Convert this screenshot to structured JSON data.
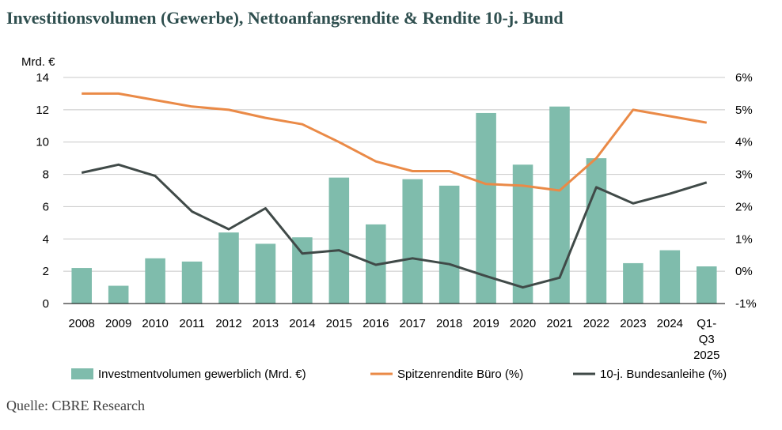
{
  "title": "Investitionsvolumen (Gewerbe), Nettoanfangsrendite & Rendite 10-j. Bund",
  "source": "Quelle: CBRE Research",
  "colors": {
    "bars": "#7fbcac",
    "spitzenrendite": "#ea8a47",
    "bund": "#404a48",
    "grid": "#c8c8c8"
  },
  "chart_data": {
    "type": "bar",
    "title": "Investitionsvolumen (Gewerbe), Nettoanfangsrendite & Rendite 10-j. Bund",
    "y_unit_label": "Mrd. €",
    "categories": [
      "2008",
      "2009",
      "2010",
      "2011",
      "2012",
      "2013",
      "2014",
      "2015",
      "2016",
      "2017",
      "2018",
      "2019",
      "2020",
      "2021",
      "2022",
      "2023",
      "2024",
      "Q1-Q3 2025"
    ],
    "category_lines": [
      [
        "2008"
      ],
      [
        "2009"
      ],
      [
        "2010"
      ],
      [
        "2011"
      ],
      [
        "2012"
      ],
      [
        "2013"
      ],
      [
        "2014"
      ],
      [
        "2015"
      ],
      [
        "2016"
      ],
      [
        "2017"
      ],
      [
        "2018"
      ],
      [
        "2019"
      ],
      [
        "2020"
      ],
      [
        "2021"
      ],
      [
        "2022"
      ],
      [
        "2023"
      ],
      [
        "2024"
      ],
      [
        "Q1-",
        "Q3",
        "2025"
      ]
    ],
    "ylim_left": [
      0,
      14
    ],
    "yticks_left": [
      0,
      2,
      4,
      6,
      8,
      10,
      12,
      14
    ],
    "ylim_right": [
      -1,
      6
    ],
    "yticks_right": [
      -1,
      0,
      1,
      2,
      3,
      4,
      5,
      6
    ],
    "yticks_right_labels": [
      "-1%",
      "0%",
      "1%",
      "2%",
      "3%",
      "4%",
      "5%",
      "6%"
    ],
    "grid": true,
    "legend_position": "bottom",
    "series": [
      {
        "name": "Investmentvolumen gewerblich (Mrd. €)",
        "kind": "bar",
        "axis": "left",
        "values": [
          2.2,
          1.1,
          2.8,
          2.6,
          4.4,
          3.7,
          4.1,
          7.8,
          4.9,
          7.7,
          7.3,
          11.8,
          8.6,
          12.2,
          9.0,
          2.5,
          3.3,
          2.3
        ]
      },
      {
        "name": "Spitzenrendite Büro (%)",
        "kind": "line",
        "axis": "right",
        "values": [
          5.5,
          5.5,
          5.3,
          5.1,
          5.0,
          4.75,
          4.55,
          4.0,
          3.4,
          3.1,
          3.1,
          2.7,
          2.65,
          2.5,
          3.5,
          5.0,
          4.8,
          4.6
        ]
      },
      {
        "name": "10-j. Bundesanleihe (%)",
        "kind": "line",
        "axis": "right",
        "values": [
          3.05,
          3.3,
          2.95,
          1.85,
          1.3,
          1.95,
          0.55,
          0.65,
          0.2,
          0.4,
          0.22,
          -0.15,
          -0.5,
          -0.2,
          2.6,
          2.1,
          2.4,
          2.75
        ]
      }
    ]
  }
}
